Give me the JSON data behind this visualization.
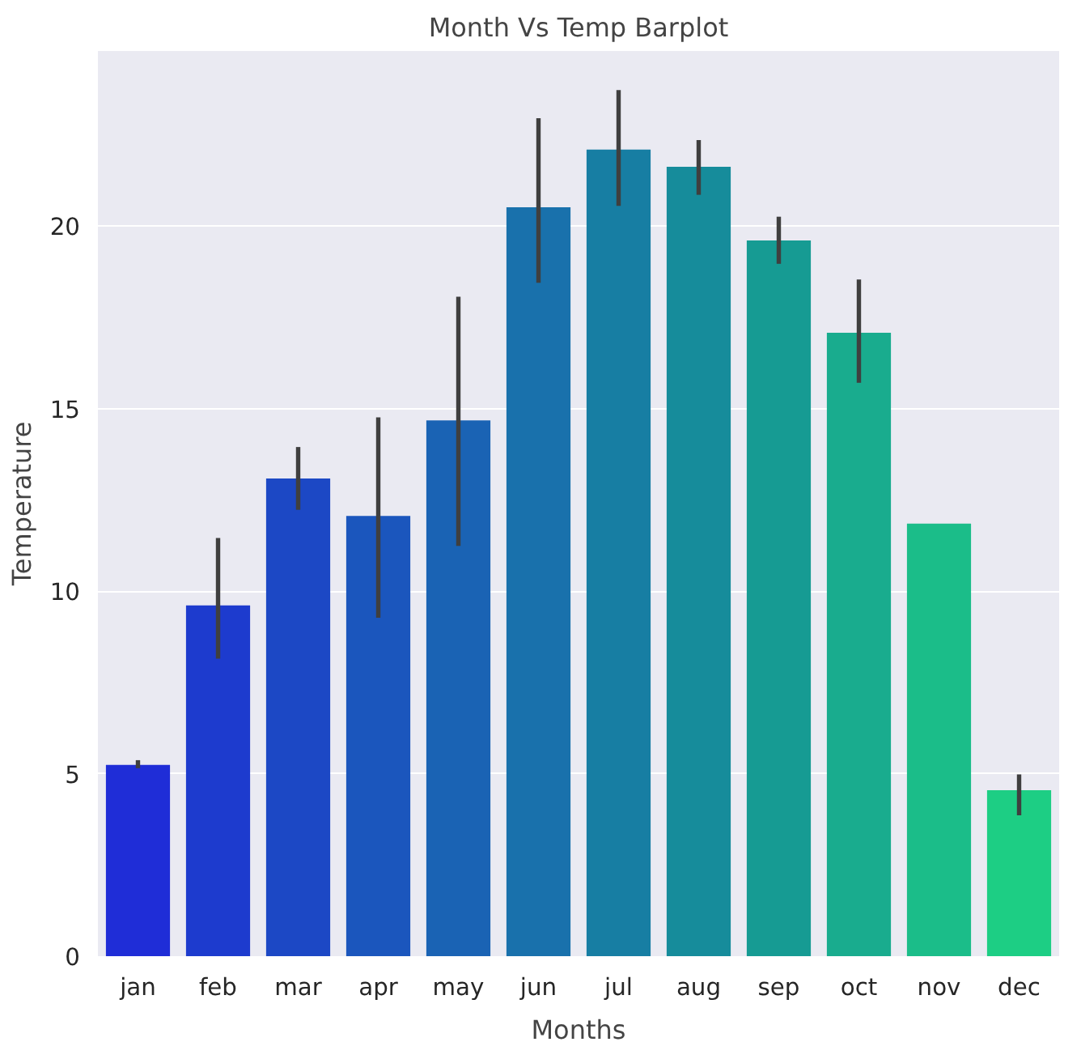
{
  "chart_data": {
    "type": "bar",
    "title": "Month Vs Temp Barplot",
    "xlabel": "Months",
    "ylabel": "Temperature",
    "categories": [
      "jan",
      "feb",
      "mar",
      "apr",
      "may",
      "jun",
      "jul",
      "aug",
      "sep",
      "oct",
      "nov",
      "dec"
    ],
    "values": [
      5.24,
      9.61,
      13.09,
      12.06,
      14.68,
      20.52,
      22.1,
      21.63,
      19.61,
      17.08,
      11.85,
      4.55
    ],
    "colors": [
      "#1f2dd7",
      "#1d3bce",
      "#1c48c5",
      "#1b56bd",
      "#1a63b4",
      "#1971ac",
      "#177ea3",
      "#168c9b",
      "#169b93",
      "#19ac8e",
      "#1bbd89",
      "#1dce84"
    ],
    "errors": [
      [
        5.15,
        5.37
      ],
      [
        8.15,
        11.46
      ],
      [
        12.23,
        13.95
      ],
      [
        9.27,
        14.76
      ],
      [
        11.24,
        18.07
      ],
      [
        18.45,
        22.96
      ],
      [
        20.56,
        23.73
      ],
      [
        20.86,
        22.36
      ],
      [
        18.97,
        20.26
      ],
      [
        15.71,
        18.54
      ],
      null,
      [
        3.86,
        4.98
      ]
    ],
    "ylim": [
      0,
      24.8
    ],
    "yticks": [
      0,
      5,
      10,
      15,
      20
    ],
    "grid": "y"
  }
}
